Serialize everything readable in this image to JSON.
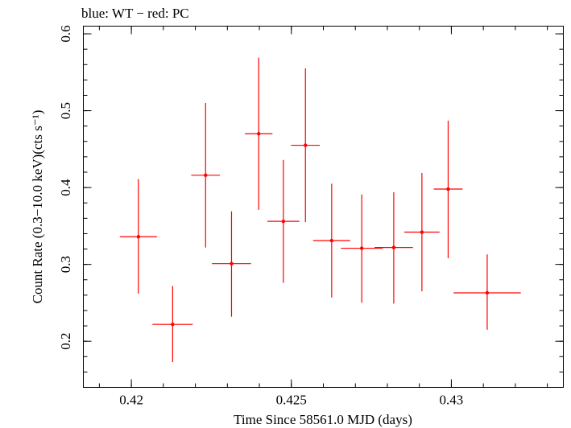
{
  "chart_data": {
    "type": "scatter",
    "title": "blue: WT − red: PC",
    "xlabel": "Time Since 58561.0 MJD (days)",
    "ylabel": "Count Rate (0.3−10.0 keV)(cts s⁻¹)",
    "xlim": [
      0.4185,
      0.4335
    ],
    "ylim": [
      0.14,
      0.61
    ],
    "xticks": [
      {
        "value": 0.42,
        "label": "0.42"
      },
      {
        "value": 0.425,
        "label": "0.425"
      },
      {
        "value": 0.43,
        "label": "0.43"
      }
    ],
    "yticks": [
      {
        "value": 0.2,
        "label": "0.2"
      },
      {
        "value": 0.3,
        "label": "0.3"
      },
      {
        "value": 0.4,
        "label": "0.4"
      },
      {
        "value": 0.5,
        "label": "0.5"
      },
      {
        "value": 0.6,
        "label": "0.6"
      }
    ],
    "x_minor_step": 0.001,
    "y_minor_step": 0.02,
    "grid": false,
    "series": [
      {
        "color": "#ff0000",
        "points": [
          {
            "x": 0.42022,
            "xerr": 0.00058,
            "y": 0.336,
            "ylo": 0.262,
            "yhi": 0.411
          },
          {
            "x": 0.42129,
            "xerr": 0.00063,
            "y": 0.222,
            "ylo": 0.173,
            "yhi": 0.272
          },
          {
            "x": 0.42232,
            "xerr": 0.00045,
            "y": 0.416,
            "ylo": 0.322,
            "yhi": 0.51
          },
          {
            "x": 0.42313,
            "xerr": 0.00061,
            "y": 0.301,
            "ylo": 0.232,
            "yhi": 0.369
          },
          {
            "x": 0.42398,
            "xerr": 0.00043,
            "y": 0.47,
            "ylo": 0.371,
            "yhi": 0.569
          },
          {
            "x": 0.42475,
            "xerr": 0.0005,
            "y": 0.356,
            "ylo": 0.276,
            "yhi": 0.436
          },
          {
            "x": 0.42544,
            "xerr": 0.00045,
            "y": 0.455,
            "ylo": 0.355,
            "yhi": 0.555
          },
          {
            "x": 0.42626,
            "xerr": 0.00058,
            "y": 0.331,
            "ylo": 0.257,
            "yhi": 0.405
          },
          {
            "x": 0.4272,
            "xerr": 0.00065,
            "y": 0.321,
            "ylo": 0.25,
            "yhi": 0.391
          },
          {
            "x": 0.4282,
            "xerr": 0.0006,
            "y": 0.322,
            "ylo": 0.249,
            "yhi": 0.394
          },
          {
            "x": 0.42908,
            "xerr": 0.00055,
            "y": 0.342,
            "ylo": 0.265,
            "yhi": 0.419
          },
          {
            "x": 0.4299,
            "xerr": 0.00045,
            "y": 0.398,
            "ylo": 0.308,
            "yhi": 0.487
          },
          {
            "x": 0.43112,
            "xerr": 0.00105,
            "y": 0.263,
            "ylo": 0.215,
            "yhi": 0.313
          }
        ]
      }
    ]
  }
}
